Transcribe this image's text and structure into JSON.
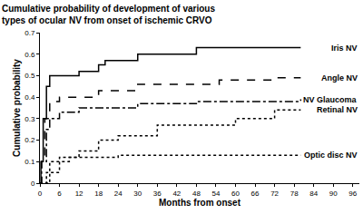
{
  "chart_data": {
    "type": "line",
    "title": "Cumulative probability of development of various\ntypes of ocular NV from onset of ischemic CRVO",
    "x_label": "Months from onset",
    "y_label": "Cumulative probability",
    "xlim": [
      0,
      98
    ],
    "xticks": [
      0,
      6,
      12,
      18,
      24,
      30,
      36,
      42,
      48,
      54,
      60,
      66,
      72,
      78,
      84,
      90,
      96
    ],
    "ylim": [
      0,
      0.7
    ],
    "yticks": [
      0,
      0.1,
      0.2,
      0.3,
      0.4,
      0.5,
      0.6,
      0.7
    ],
    "grid": false,
    "series": [
      {
        "name": "Iris NV",
        "color": "#000000",
        "line_style": "solid",
        "x": [
          0,
          0.3,
          1,
          2,
          3,
          12,
          18,
          20,
          30,
          48,
          80
        ],
        "values": [
          0,
          0.1,
          0.3,
          0.45,
          0.5,
          0.52,
          0.55,
          0.57,
          0.6,
          0.63,
          0.63
        ]
      },
      {
        "name": "Angle NV",
        "color": "#000000",
        "line_style": "dash",
        "x": [
          0,
          0.5,
          1.5,
          3,
          6,
          18,
          30,
          55,
          72,
          80
        ],
        "values": [
          0,
          0.1,
          0.3,
          0.38,
          0.4,
          0.43,
          0.46,
          0.48,
          0.49,
          0.49
        ]
      },
      {
        "name": "NV Glaucoma",
        "color": "#000000",
        "line_style": "dashdot",
        "x": [
          0,
          0.5,
          2,
          3,
          6,
          12,
          30,
          48,
          80
        ],
        "values": [
          0,
          0.1,
          0.25,
          0.3,
          0.33,
          0.35,
          0.37,
          0.38,
          0.39
        ]
      },
      {
        "name": "Retinal NV",
        "color": "#000000",
        "line_style": "dot",
        "x": [
          0,
          3,
          6,
          12,
          18,
          24,
          36,
          60,
          72,
          80
        ],
        "values": [
          0,
          0.05,
          0.12,
          0.15,
          0.2,
          0.22,
          0.27,
          0.3,
          0.34,
          0.34
        ]
      },
      {
        "name": "Optic disc NV",
        "color": "#000000",
        "line_style": "dot",
        "x": [
          0,
          2,
          3,
          9,
          24,
          80
        ],
        "values": [
          0,
          0.05,
          0.1,
          0.12,
          0.13,
          0.13
        ]
      }
    ]
  }
}
